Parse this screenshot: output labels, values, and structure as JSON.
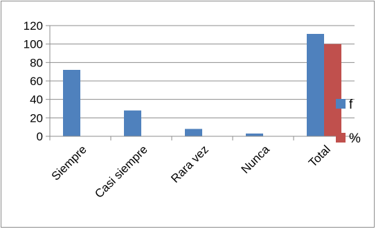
{
  "chart_data": {
    "type": "bar",
    "categories": [
      "Siempre",
      "Casi siempre",
      "Rara vez",
      "Nunca",
      "Total"
    ],
    "series": [
      {
        "name": "f",
        "color": "#4f81bd",
        "values": [
          72,
          28,
          8,
          3,
          111
        ]
      },
      {
        "name": "%",
        "color": "#c0504d",
        "values": [
          null,
          null,
          null,
          null,
          100
        ]
      }
    ],
    "ylim": [
      0,
      120
    ],
    "yticks": [
      0,
      20,
      40,
      60,
      80,
      100,
      120
    ],
    "grid": true,
    "legend": "right"
  }
}
